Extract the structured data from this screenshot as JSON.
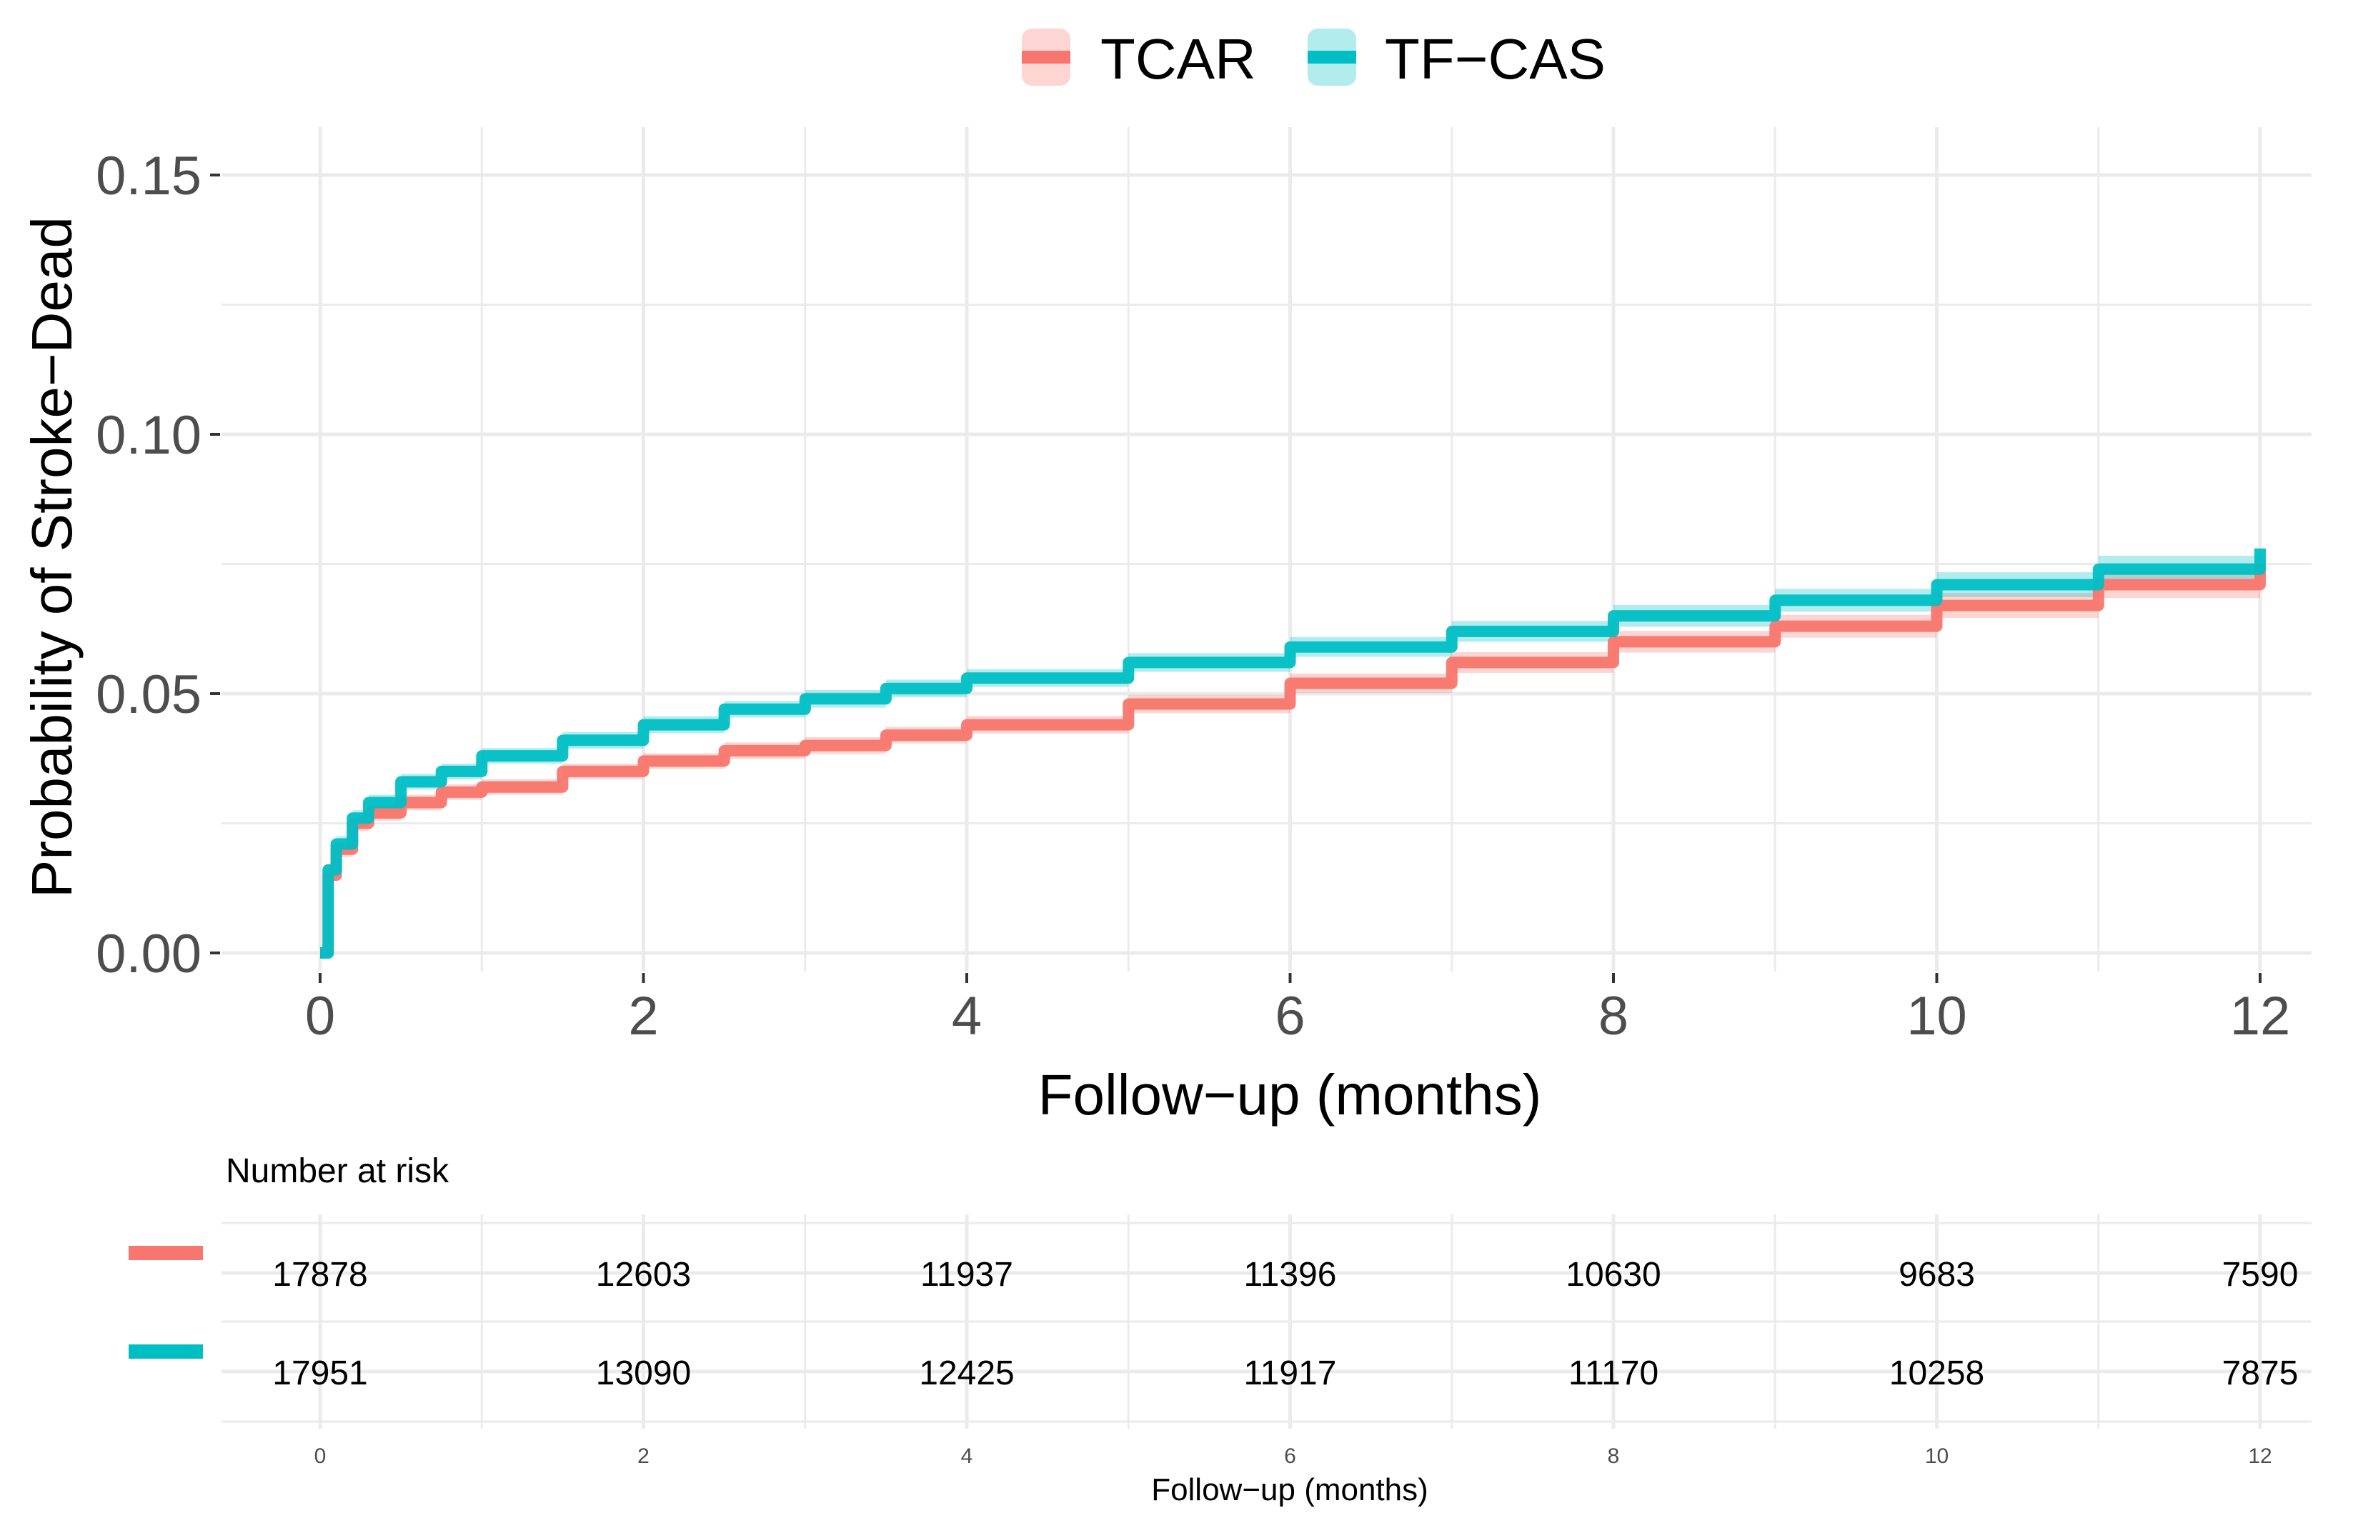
{
  "chart_data": {
    "type": "line",
    "title": "",
    "xlabel": "Follow−up (months)",
    "ylabel": "Probability of Stroke−Dead",
    "xlim": [
      0,
      12
    ],
    "ylim": [
      0,
      0.15
    ],
    "x_ticks": [
      0,
      2,
      4,
      6,
      8,
      10,
      12
    ],
    "x_tick_labels": [
      "0",
      "2",
      "4",
      "6",
      "8",
      "10",
      "12"
    ],
    "y_ticks": [
      0.0,
      0.05,
      0.1,
      0.15
    ],
    "y_tick_labels": [
      "0.00",
      "0.05",
      "0.10",
      "0.15"
    ],
    "grid": true,
    "legend_position": "top",
    "series": [
      {
        "name": "TCAR",
        "color": "#F8766D",
        "x": [
          0,
          0.05,
          0.1,
          0.2,
          0.3,
          0.5,
          0.75,
          1,
          1.5,
          2,
          2.5,
          3,
          3.5,
          4,
          5,
          6,
          7,
          8,
          9,
          10,
          11,
          12
        ],
        "y": [
          0,
          0.015,
          0.02,
          0.025,
          0.027,
          0.029,
          0.031,
          0.032,
          0.035,
          0.037,
          0.039,
          0.04,
          0.042,
          0.044,
          0.048,
          0.052,
          0.056,
          0.06,
          0.063,
          0.067,
          0.071,
          0.075
        ],
        "ci_halfwidth": [
          0,
          0.001,
          0.0015,
          0.0015,
          0.0015,
          0.0015,
          0.0015,
          0.0015,
          0.0015,
          0.0015,
          0.0016,
          0.0016,
          0.0016,
          0.0017,
          0.0018,
          0.0019,
          0.002,
          0.0021,
          0.0022,
          0.0024,
          0.0026,
          0.0028
        ]
      },
      {
        "name": "TF−CAS",
        "color": "#00BFC4",
        "x": [
          0,
          0.05,
          0.1,
          0.2,
          0.3,
          0.5,
          0.75,
          1,
          1.5,
          2,
          2.5,
          3,
          3.5,
          4,
          5,
          6,
          7,
          8,
          9,
          10,
          11,
          12
        ],
        "y": [
          0,
          0.016,
          0.021,
          0.026,
          0.029,
          0.033,
          0.035,
          0.038,
          0.041,
          0.044,
          0.047,
          0.049,
          0.051,
          0.053,
          0.056,
          0.059,
          0.062,
          0.065,
          0.068,
          0.071,
          0.074,
          0.078
        ],
        "ci_halfwidth": [
          0,
          0.001,
          0.0015,
          0.0015,
          0.0015,
          0.0015,
          0.0015,
          0.0015,
          0.0016,
          0.0016,
          0.0016,
          0.0017,
          0.0017,
          0.0017,
          0.0018,
          0.0019,
          0.002,
          0.0021,
          0.0022,
          0.0024,
          0.0026,
          0.0028
        ]
      }
    ]
  },
  "risk_table": {
    "title": "Number at risk",
    "xlabel": "Follow−up (months)",
    "times": [
      0,
      2,
      4,
      6,
      8,
      10,
      12
    ],
    "time_labels": [
      "0",
      "2",
      "4",
      "6",
      "8",
      "10",
      "12"
    ],
    "rows": [
      {
        "name": "TCAR",
        "color": "#F8766D",
        "values": [
          "17878",
          "12603",
          "11937",
          "11396",
          "10630",
          "9683",
          "7590"
        ]
      },
      {
        "name": "TF−CAS",
        "color": "#00BFC4",
        "values": [
          "17951",
          "13090",
          "12425",
          "11917",
          "11170",
          "10258",
          "7875"
        ]
      }
    ]
  }
}
